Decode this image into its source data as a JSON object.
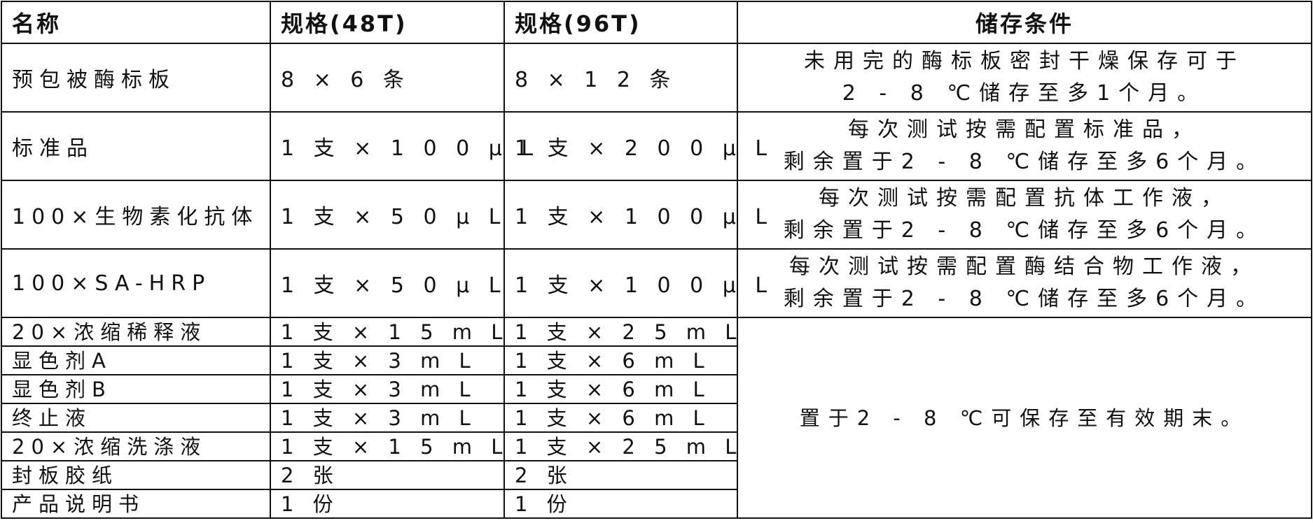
{
  "headers": [
    "名称",
    "规格(48T)",
    "规格(96T)",
    "储存条件"
  ],
  "rows": [
    {
      "name": "预包被酶标板",
      "spec48": "8 × 6 条",
      "spec96": "8 × 1 2 条",
      "storage": [
        "未用完的酶标板密封干燥保存可于",
        "2 - 8 ℃储存至多1个月。"
      ]
    },
    {
      "name": "标准品",
      "spec48": "1 支 × 1 0 0 μ L",
      "spec96": "1 支 × 2 0 0 μ L",
      "storage": [
        "每次测试按需配置标准品，",
        "剩余置于2 - 8 ℃储存至多6个月。"
      ]
    },
    {
      "name": "100×生物素化抗体",
      "spec48": "1 支 × 5 0 μ L",
      "spec96": "1 支 × 1 0 0 μ L",
      "storage": [
        "每次测试按需配置抗体工作液，",
        "剩余置于2 - 8 ℃储存至多6个月。"
      ]
    },
    {
      "name": "100×SA-HRP",
      "spec48": "1 支 × 5 0 μ L",
      "spec96": "1 支 × 1 0 0 μ L",
      "storage": [
        "每次测试按需配置酶结合物工作液，",
        "剩余置于2 - 8 ℃储存至多6个月。"
      ]
    },
    {
      "name": "20×浓缩稀释液",
      "spec48": "1 支 × 1 5 m L",
      "spec96": "1 支 × 2 5 m L"
    },
    {
      "name": "显色剂A",
      "spec48": "1 支 × 3 m L",
      "spec96": "1 支 × 6 m L"
    },
    {
      "name": "显色剂B",
      "spec48": "1 支 × 3 m L",
      "spec96": "1 支 × 6 m L"
    },
    {
      "name": "终止液",
      "spec48": "1 支 × 3 m L",
      "spec96": "1 支 × 6 m L"
    },
    {
      "name": "20×浓缩洗涤液",
      "spec48": "1 支 × 1 5 m L",
      "spec96": "1 支 × 2 5 m L"
    },
    {
      "name": "封板胶纸",
      "spec48": "2 张",
      "spec96": "2 张"
    },
    {
      "name": "产品说明书",
      "spec48": "1 份",
      "spec96": "1 份"
    }
  ],
  "shared_storage": "置于2 - 8 ℃可保存至有效期末。"
}
